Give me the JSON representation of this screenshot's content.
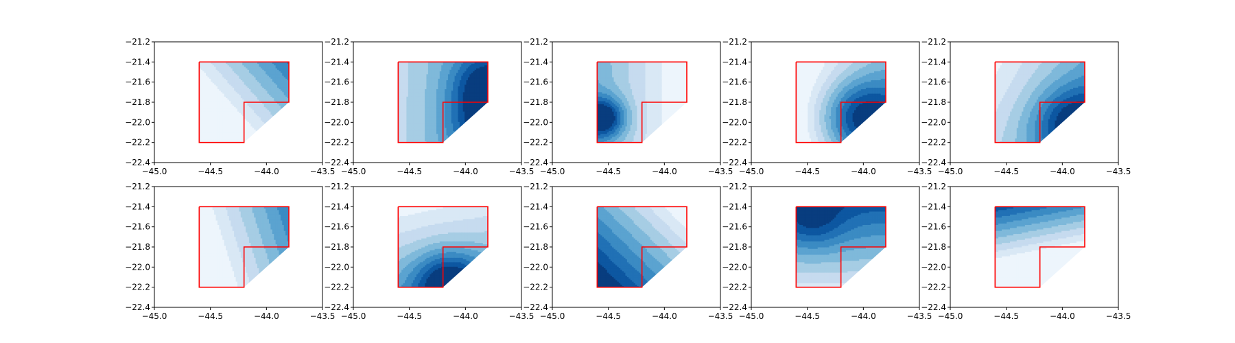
{
  "colors": {
    "background": "#ffffff",
    "axes": "#000000",
    "boundary": "#ff0000",
    "colormap": "Blues",
    "colormap_stops": [
      "#f7fbff",
      "#deebf7",
      "#c6dbef",
      "#9ecae1",
      "#6baed6",
      "#4292c6",
      "#2171b5",
      "#08519c",
      "#08306b"
    ]
  },
  "chart_data": {
    "type": "contour",
    "grid": false,
    "legend": "none",
    "subplot_layout": {
      "rows": 2,
      "cols": 5
    },
    "xlim": [
      -45.0,
      -43.5
    ],
    "ylim": [
      -22.4,
      -21.2
    ],
    "x_ticks": [
      -45.0,
      -44.5,
      -44.0,
      -43.5
    ],
    "y_ticks": [
      -21.2,
      -21.4,
      -21.6,
      -21.8,
      -22.0,
      -22.2,
      -22.4
    ],
    "x_tick_labels": [
      "−45.0",
      "−44.5",
      "−44.0",
      "−43.5"
    ],
    "y_tick_labels": [
      "−21.2",
      "−21.4",
      "−21.6",
      "−21.8",
      "−22.0",
      "−22.2",
      "−22.4"
    ],
    "region_boundary": {
      "x": [
        -44.6,
        -43.8,
        -43.8,
        -44.2,
        -44.2,
        -44.6,
        -44.6
      ],
      "y": [
        -21.4,
        -21.4,
        -21.8,
        -21.8,
        -22.2,
        -22.2,
        -21.4
      ]
    },
    "region_fill": {
      "x": [
        -44.6,
        -43.8,
        -43.8,
        -44.2,
        -44.6
      ],
      "y": [
        -21.4,
        -21.4,
        -21.8,
        -22.2,
        -22.2
      ]
    },
    "panels": [
      {
        "row": 0,
        "col": 0,
        "field": {
          "base": 0.15,
          "gx": 0.55,
          "gy": 0.35
        },
        "peaks": []
      },
      {
        "row": 0,
        "col": 1,
        "field": {
          "base": 0.42,
          "gx": 0.35,
          "gy": 0.0
        },
        "peaks": [
          {
            "x": -43.85,
            "y": -21.6,
            "amp": 0.35,
            "r": 0.2
          },
          {
            "x": -43.8,
            "y": -22.0,
            "amp": 0.45,
            "r": 0.25
          }
        ]
      },
      {
        "row": 0,
        "col": 2,
        "field": {
          "base": 0.25,
          "gx": -0.5,
          "gy": 0.0
        },
        "peaks": [
          {
            "x": -44.55,
            "y": -21.95,
            "amp": 0.7,
            "r": 0.14
          }
        ]
      },
      {
        "row": 0,
        "col": 3,
        "field": {
          "base": 0.1,
          "gx": 0.45,
          "gy": 0.0
        },
        "peaks": [
          {
            "x": -44.0,
            "y": -21.95,
            "amp": 0.75,
            "r": 0.28
          }
        ]
      },
      {
        "row": 0,
        "col": 4,
        "field": {
          "base": 0.35,
          "gx": 0.4,
          "gy": -0.15
        },
        "peaks": [
          {
            "x": -43.9,
            "y": -22.0,
            "amp": 0.5,
            "r": 0.25
          }
        ]
      },
      {
        "row": 1,
        "col": 0,
        "field": {
          "base": 0.2,
          "gx": 0.65,
          "gy": 0.15
        },
        "peaks": []
      },
      {
        "row": 1,
        "col": 1,
        "field": {
          "base": 0.32,
          "gx": 0.1,
          "gy": -0.35
        },
        "peaks": [
          {
            "x": -44.15,
            "y": -22.15,
            "amp": 0.6,
            "r": 0.22
          }
        ]
      },
      {
        "row": 1,
        "col": 2,
        "field": {
          "base": 0.55,
          "gx": -0.55,
          "gy": -0.4
        },
        "peaks": []
      },
      {
        "row": 1,
        "col": 3,
        "field": {
          "base": 0.5,
          "gx": 0.0,
          "gy": 0.5
        },
        "peaks": [
          {
            "x": -44.45,
            "y": -21.55,
            "amp": 0.25,
            "r": 0.2
          }
        ]
      },
      {
        "row": 1,
        "col": 4,
        "field": {
          "base": 0.15,
          "gx": -0.25,
          "gy": 0.9
        },
        "peaks": []
      }
    ]
  }
}
